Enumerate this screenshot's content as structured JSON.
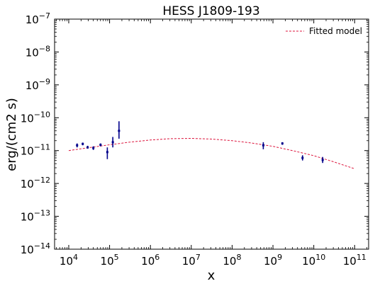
{
  "chart_data": {
    "type": "scatter",
    "title": "HESS J1809-193",
    "xlabel": "x",
    "ylabel": "erg/(cm2 s)",
    "xscale": "log",
    "yscale": "log",
    "xlim": [
      4500.0,
      220000000000.0
    ],
    "ylim": [
      1e-14,
      1e-07
    ],
    "x_ticks": [
      {
        "value": 10000.0,
        "base": "10",
        "exp": "4"
      },
      {
        "value": 100000.0,
        "base": "10",
        "exp": "5"
      },
      {
        "value": 1000000.0,
        "base": "10",
        "exp": "6"
      },
      {
        "value": 10000000.0,
        "base": "10",
        "exp": "7"
      },
      {
        "value": 100000000.0,
        "base": "10",
        "exp": "8"
      },
      {
        "value": 1000000000.0,
        "base": "10",
        "exp": "9"
      },
      {
        "value": 10000000000.0,
        "base": "10",
        "exp": "10"
      },
      {
        "value": 100000000000.0,
        "base": "10",
        "exp": "11"
      }
    ],
    "y_ticks": [
      {
        "value": 1e-14,
        "base": "10",
        "exp": "−14"
      },
      {
        "value": 1e-13,
        "base": "10",
        "exp": "−13"
      },
      {
        "value": 1e-12,
        "base": "10",
        "exp": "−12"
      },
      {
        "value": 1e-11,
        "base": "10",
        "exp": "−11"
      },
      {
        "value": 1e-10,
        "base": "10",
        "exp": "−10"
      },
      {
        "value": 1e-09,
        "base": "10",
        "exp": "−9"
      },
      {
        "value": 1e-08,
        "base": "10",
        "exp": "−8"
      },
      {
        "value": 1e-07,
        "base": "10",
        "exp": "−7"
      }
    ],
    "legend": {
      "position": "top-right",
      "entries": [
        "Fitted model"
      ]
    },
    "grid": false,
    "colors": {
      "data": "#00008b",
      "model": "#dc143c"
    },
    "points": [
      {
        "x": 16000.0,
        "y": 1.45e-11,
        "ylo": 1.25e-11,
        "yhi": 1.65e-11
      },
      {
        "x": 22000.0,
        "y": 1.6e-11,
        "ylo": 1.45e-11,
        "yhi": 1.75e-11
      },
      {
        "x": 29000.0,
        "y": 1.25e-11,
        "ylo": 1.15e-11,
        "yhi": 1.4e-11
      },
      {
        "x": 40000.0,
        "y": 1.2e-11,
        "ylo": 1.05e-11,
        "yhi": 1.35e-11
      },
      {
        "x": 60000.0,
        "y": 1.5e-11,
        "ylo": 1.35e-11,
        "yhi": 1.65e-11
      },
      {
        "x": 88000.0,
        "y": 9e-12,
        "ylo": 5.5e-12,
        "yhi": 1.25e-11
      },
      {
        "x": 120000.0,
        "y": 1.8e-11,
        "ylo": 1.25e-11,
        "yhi": 2.6e-11
      },
      {
        "x": 170000.0,
        "y": 4e-11,
        "ylo": 2.3e-11,
        "yhi": 7.8e-11
      },
      {
        "x": 580000000.0,
        "y": 1.45e-11,
        "ylo": 1.1e-11,
        "yhi": 1.8e-11
      },
      {
        "x": 1700000000.0,
        "y": 1.65e-11,
        "ylo": 1.5e-11,
        "yhi": 1.8e-11
      },
      {
        "x": 5300000000.0,
        "y": 6e-12,
        "ylo": 5e-12,
        "yhi": 7.2e-12
      },
      {
        "x": 16500000000.0,
        "y": 5.2e-12,
        "ylo": 4.2e-12,
        "yhi": 6.4e-12
      }
    ],
    "model": {
      "name": "Fitted model",
      "x": [
        10000.0,
        30000.0,
        100000.0,
        300000.0,
        1000000.0,
        3000000.0,
        10000000.0,
        30000000.0,
        100000000.0,
        300000000.0,
        1000000000.0,
        3000000000.0,
        10000000000.0,
        30000000000.0,
        100000000000.0
      ],
      "y": [
        1e-11,
        1.22e-11,
        1.5e-11,
        1.8e-11,
        2.1e-11,
        2.3e-11,
        2.35e-11,
        2.25e-11,
        2e-11,
        1.7e-11,
        1.35e-11,
        1e-11,
        7e-12,
        4.6e-12,
        2.8e-12
      ]
    }
  }
}
